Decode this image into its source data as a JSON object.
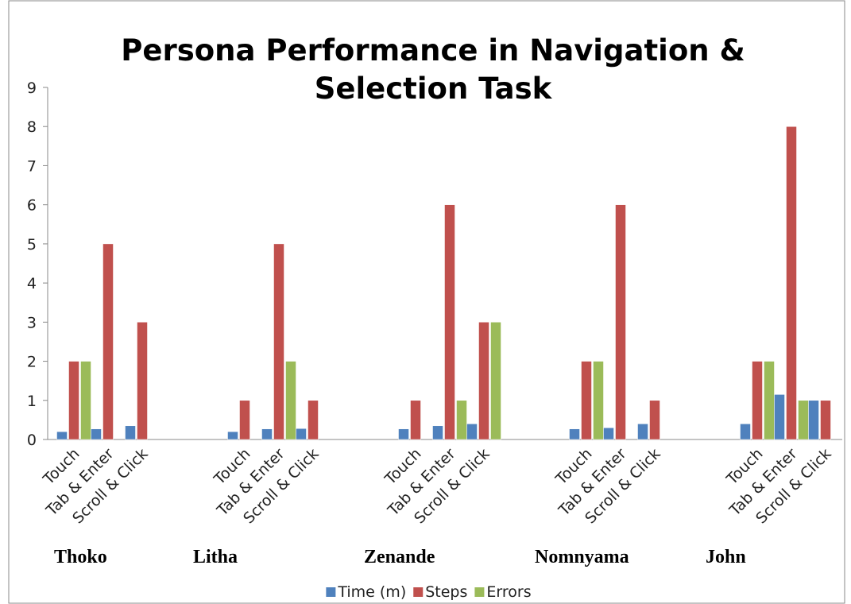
{
  "chart_data": {
    "type": "bar",
    "title": "Persona Performance in Navigation & Selection Task",
    "categories": [
      "Touch",
      "Tab & Enter",
      "Scroll & Click",
      "Touch",
      "Tab & Enter",
      "Scroll & Click",
      "Touch",
      "Tab & Enter",
      "Scroll & Click",
      "Touch",
      "Tab & Enter",
      "Scroll & Click",
      "Touch",
      "Tab & Enter",
      "Scroll & Click"
    ],
    "groups": [
      "Thoko",
      "Litha",
      "Zenande",
      "Nomnyama",
      "John"
    ],
    "series": [
      {
        "name": "Time (m)",
        "color": "#4f81bd",
        "values": [
          0.2,
          0.27,
          0.35,
          0.2,
          0.27,
          0.28,
          0.27,
          0.35,
          0.4,
          0.27,
          0.3,
          0.4,
          0.4,
          1.15,
          1.0
        ]
      },
      {
        "name": "Steps",
        "color": "#c0504d",
        "values": [
          2,
          5,
          3,
          1,
          5,
          1,
          1,
          6,
          3,
          2,
          6,
          1,
          2,
          8,
          1
        ]
      },
      {
        "name": "Errors",
        "color": "#9bbb59",
        "values": [
          2,
          0,
          0,
          0,
          2,
          0,
          0,
          1,
          3,
          2,
          0,
          0,
          2,
          1,
          0
        ]
      }
    ],
    "ylim": [
      0,
      9
    ],
    "yticks": [
      0,
      1,
      2,
      3,
      4,
      5,
      6,
      7,
      8,
      9
    ],
    "legend": "bottom"
  }
}
